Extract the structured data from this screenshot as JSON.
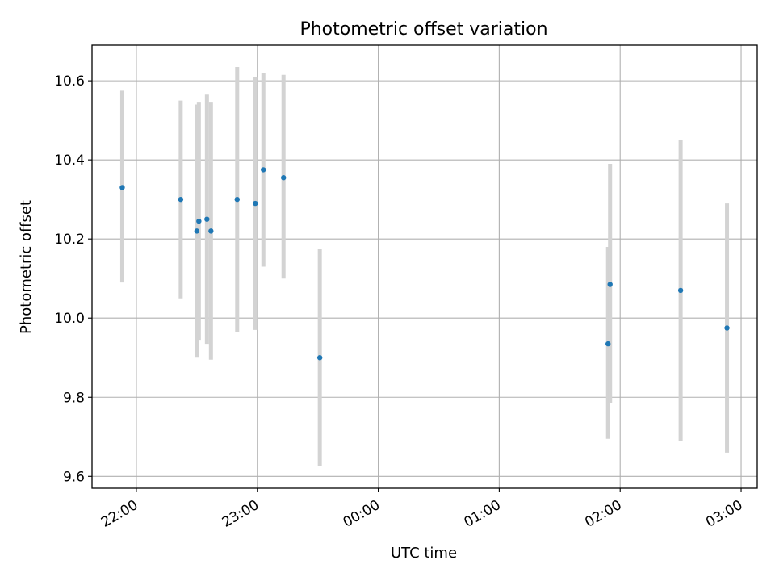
{
  "chart_data": {
    "type": "scatter",
    "title": "Photometric offset variation",
    "xlabel": "UTC time",
    "ylabel": "Photometric offset",
    "x_tick_labels": [
      "22:00",
      "23:00",
      "00:00",
      "01:00",
      "02:00",
      "03:00"
    ],
    "y_tick_labels": [
      "9.6",
      "9.8",
      "10.0",
      "10.2",
      "10.4",
      "10.6"
    ],
    "x_range": [
      "21:38",
      "03:08"
    ],
    "ylim": [
      9.57,
      10.69
    ],
    "grid": true,
    "series": [
      {
        "marker_color": "#1f77b4",
        "errorbar_color": "#d3d3d3",
        "points": [
          {
            "x": "21:53",
            "y": 10.33,
            "y_low": 10.09,
            "y_high": 10.575
          },
          {
            "x": "22:22",
            "y": 10.3,
            "y_low": 10.05,
            "y_high": 10.55
          },
          {
            "x": "22:30",
            "y": 10.22,
            "y_low": 9.9,
            "y_high": 10.54
          },
          {
            "x": "22:31",
            "y": 10.245,
            "y_low": 9.945,
            "y_high": 10.545
          },
          {
            "x": "22:35",
            "y": 10.25,
            "y_low": 9.935,
            "y_high": 10.565
          },
          {
            "x": "22:37",
            "y": 10.22,
            "y_low": 9.895,
            "y_high": 10.545
          },
          {
            "x": "22:50",
            "y": 10.3,
            "y_low": 9.965,
            "y_high": 10.635
          },
          {
            "x": "22:59",
            "y": 10.29,
            "y_low": 9.97,
            "y_high": 10.61
          },
          {
            "x": "23:03",
            "y": 10.375,
            "y_low": 10.13,
            "y_high": 10.62
          },
          {
            "x": "23:13",
            "y": 10.355,
            "y_low": 10.1,
            "y_high": 10.615
          },
          {
            "x": "23:31",
            "y": 9.9,
            "y_low": 9.625,
            "y_high": 10.175
          },
          {
            "x": "01:54",
            "y": 9.935,
            "y_low": 9.695,
            "y_high": 10.18
          },
          {
            "x": "01:55",
            "y": 10.085,
            "y_low": 9.785,
            "y_high": 10.39
          },
          {
            "x": "02:30",
            "y": 10.07,
            "y_low": 9.69,
            "y_high": 10.45
          },
          {
            "x": "02:53",
            "y": 9.975,
            "y_low": 9.66,
            "y_high": 10.29
          }
        ]
      }
    ]
  }
}
